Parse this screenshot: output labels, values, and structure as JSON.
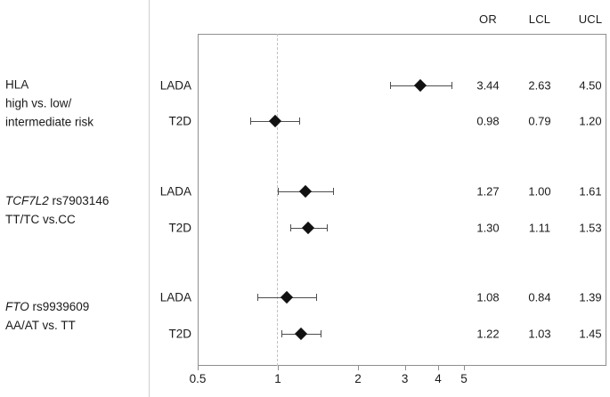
{
  "figure": {
    "columns": [
      "OR",
      "LCL",
      "UCL"
    ],
    "axis_tick_labels": [
      "0.5",
      "1",
      "2",
      "3",
      "4",
      "5"
    ]
  },
  "colors": {
    "marker": "#111111",
    "error_bar": "#4d4d4d",
    "frame": "#8f8f8f",
    "reference_line": "#c2c2c2",
    "divider": "#cfcfcf",
    "text": "#1a1a1a"
  },
  "chart_data": {
    "type": "scatter",
    "subtype": "forest_plot",
    "x_scale": "log10",
    "x_ticks": [
      0.5,
      1,
      2,
      3,
      4,
      5
    ],
    "reference_line_x": 1,
    "value_columns": [
      "OR",
      "LCL",
      "UCL"
    ],
    "legend_position": "none",
    "grid": false,
    "groups": [
      {
        "gene": "HLA",
        "gene_italic": false,
        "variant": "",
        "comparison_lines": [
          "high vs. low/",
          "intermediate risk"
        ],
        "rows": [
          {
            "cohort": "LADA",
            "or": "3.44",
            "lcl": "2.63",
            "ucl": "4.50"
          },
          {
            "cohort": "T2D",
            "or": "0.98",
            "lcl": "0.79",
            "ucl": "1.20"
          }
        ]
      },
      {
        "gene": "TCF7L2",
        "gene_italic": true,
        "variant": " rs7903146",
        "comparison_lines": [
          "TT/TC vs.CC"
        ],
        "rows": [
          {
            "cohort": "LADA",
            "or": "1.27",
            "lcl": "1.00",
            "ucl": "1.61"
          },
          {
            "cohort": "T2D",
            "or": "1.30",
            "lcl": "1.11",
            "ucl": "1.53"
          }
        ]
      },
      {
        "gene": "FTO",
        "gene_italic": true,
        "variant": " rs9939609",
        "comparison_lines": [
          "AA/AT vs. TT"
        ],
        "rows": [
          {
            "cohort": "LADA",
            "or": "1.08",
            "lcl": "0.84",
            "ucl": "1.39"
          },
          {
            "cohort": "T2D",
            "or": "1.22",
            "lcl": "1.03",
            "ucl": "1.45"
          }
        ]
      }
    ]
  }
}
